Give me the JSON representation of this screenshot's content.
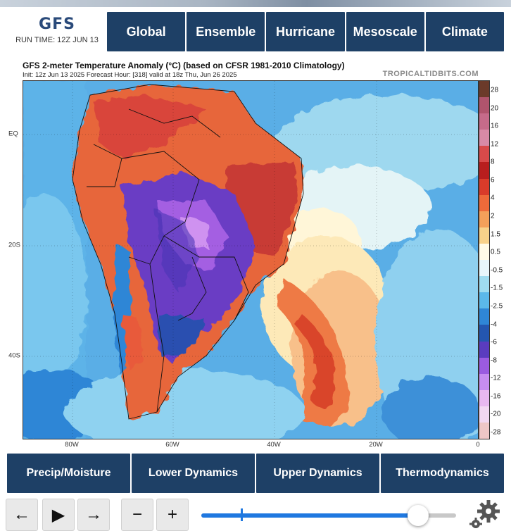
{
  "header": {
    "logo": "GFS",
    "run_time": "RUN TIME: 12Z JUN 13"
  },
  "nav_top": [
    "Global",
    "Ensemble",
    "Hurricane",
    "Mesoscale",
    "Climate"
  ],
  "map": {
    "title": "GFS 2-meter Temperature Anomaly (°C) (based on CFSR 1981-2010 Climatology)",
    "init_line": "Init: 12z Jun 13 2025   Forecast Hour: [318]   valid at 18z Thu, Jun 26 2025",
    "brand": "TROPICALTIDBITS.COM",
    "lat_labels": [
      "EQ",
      "20S",
      "40S"
    ],
    "lon_labels": [
      "80W",
      "60W",
      "40W",
      "20W",
      "0"
    ]
  },
  "colorbar": {
    "labels": [
      "28",
      "20",
      "16",
      "12",
      "8",
      "6",
      "4",
      "2",
      "1.5",
      "0.5",
      "-0.5",
      "-1.5",
      "-2.5",
      "-4",
      "-6",
      "-8",
      "-12",
      "-16",
      "-20",
      "-28"
    ],
    "colors": [
      "#6b3a2a",
      "#b0546d",
      "#c66b8a",
      "#d88aa6",
      "#d84a4a",
      "#b81e1e",
      "#d93b2a",
      "#ee6a3a",
      "#f4a05a",
      "#f8d28a",
      "#fffbe8",
      "#e8f6fb",
      "#9fdcf0",
      "#5bb8ea",
      "#2f86d6",
      "#2456b0",
      "#5a3cbf",
      "#9b5be0",
      "#c78df0",
      "#e8b8f0",
      "#f2d8f2",
      "#eec7c7"
    ]
  },
  "nav_bottom": [
    "Precip/Moisture",
    "Lower Dynamics",
    "Upper Dynamics",
    "Thermodynamics"
  ],
  "controls": {
    "prev": "←",
    "play": "▶",
    "next": "→",
    "zoom_out": "−",
    "zoom_in": "+",
    "timeline_progress": 0.85,
    "gear": "settings"
  }
}
